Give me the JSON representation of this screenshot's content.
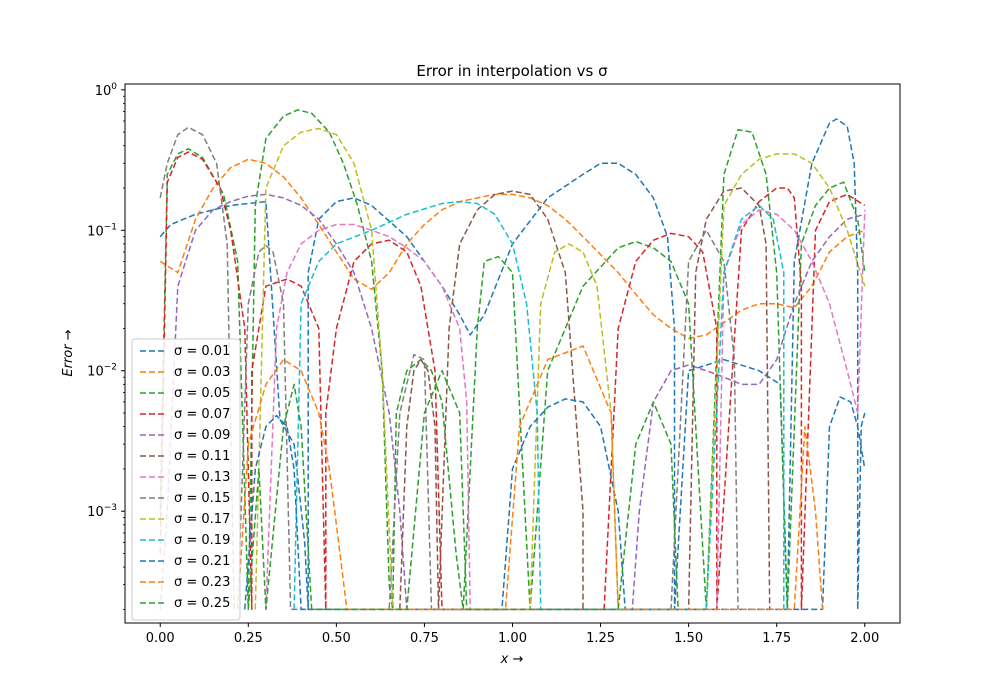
{
  "chart_data": {
    "type": "line",
    "title": "Error in interpolation vs σ",
    "xlabel": "x →",
    "ylabel": "Error →",
    "xlim": [
      -0.1,
      2.1
    ],
    "ylim": [
      0.00016,
      1.1
    ],
    "yscale": "log",
    "line_style": "dashed",
    "grid": false,
    "legend_position": "lower-left",
    "x_ticks": [
      0.0,
      0.25,
      0.5,
      0.75,
      1.0,
      1.25,
      1.5,
      1.75,
      2.0
    ],
    "x_tick_labels": [
      "0.00",
      "0.25",
      "0.50",
      "0.75",
      "1.00",
      "1.25",
      "1.50",
      "1.75",
      "2.00"
    ],
    "y_ticks": [
      0.001,
      0.01,
      0.1,
      1
    ],
    "y_tick_base": "10",
    "y_tick_exponents": [
      "−3",
      "−2",
      "−1",
      "0"
    ],
    "series": [
      {
        "name": "σ = 0.01",
        "color": "#1f77b4",
        "x": [
          0.0,
          0.03,
          0.1,
          0.2,
          0.3,
          0.34,
          0.38,
          0.41,
          0.42,
          0.42,
          0.45,
          0.5,
          0.55,
          0.6,
          0.7,
          0.75,
          0.8,
          0.85,
          0.88,
          0.92,
          1.0,
          1.1,
          1.2,
          1.25,
          1.3,
          1.35,
          1.4,
          1.44,
          1.46,
          1.46,
          1.5,
          1.6,
          1.7,
          1.76,
          1.78,
          1.8,
          1.85,
          1.9,
          1.92,
          1.95,
          1.97,
          1.98,
          1.98,
          1.99,
          2.0
        ],
        "y": [
          0.09,
          0.11,
          0.13,
          0.15,
          0.16,
          0.0045,
          0.003,
          0.0006,
          0.0002,
          0.05,
          0.12,
          0.16,
          0.17,
          0.15,
          0.09,
          0.06,
          0.04,
          0.025,
          0.018,
          0.025,
          0.08,
          0.17,
          0.25,
          0.3,
          0.3,
          0.25,
          0.17,
          0.09,
          0.02,
          0.0002,
          0.01,
          0.012,
          0.01,
          0.008,
          0.0002,
          0.06,
          0.3,
          0.58,
          0.62,
          0.55,
          0.3,
          0.05,
          0.0002,
          0.004,
          0.005
        ]
      },
      {
        "name": "σ = 0.03",
        "color": "#ff7f0e",
        "x": [
          0.0,
          0.05,
          0.1,
          0.15,
          0.2,
          0.25,
          0.3,
          0.35,
          0.4,
          0.45,
          0.5,
          0.55,
          0.6,
          0.65,
          0.7,
          0.75,
          0.8,
          0.85,
          0.9,
          0.95,
          1.0,
          1.05,
          1.1,
          1.15,
          1.2,
          1.3,
          1.35,
          1.4,
          1.45,
          1.5,
          1.55,
          1.6,
          1.65,
          1.7,
          1.75,
          1.8,
          1.85,
          1.9,
          1.95,
          2.0
        ],
        "y": [
          0.06,
          0.05,
          0.12,
          0.2,
          0.28,
          0.32,
          0.3,
          0.24,
          0.17,
          0.11,
          0.07,
          0.045,
          0.038,
          0.05,
          0.08,
          0.11,
          0.14,
          0.16,
          0.17,
          0.18,
          0.18,
          0.17,
          0.15,
          0.12,
          0.09,
          0.05,
          0.035,
          0.025,
          0.02,
          0.017,
          0.018,
          0.022,
          0.027,
          0.03,
          0.03,
          0.028,
          0.04,
          0.07,
          0.09,
          0.1
        ]
      },
      {
        "name": "σ = 0.05",
        "color": "#2ca02c",
        "x": [
          0.0,
          0.02,
          0.05,
          0.08,
          0.12,
          0.18,
          0.22,
          0.25,
          0.27,
          0.3,
          0.35,
          0.39,
          0.43,
          0.48,
          0.52,
          0.56,
          0.6,
          0.63,
          0.65,
          0.66,
          0.67,
          0.7,
          0.74,
          0.77,
          0.8,
          0.84,
          0.86,
          0.9,
          0.92,
          0.96,
          1.0,
          1.05,
          1.1,
          1.2,
          1.3,
          1.35,
          1.4,
          1.45,
          1.5,
          1.55,
          1.6,
          1.64,
          1.68,
          1.72,
          1.75,
          1.78,
          1.82,
          1.86,
          1.9,
          1.94,
          1.98,
          2.0
        ],
        "y": [
          0.001,
          0.25,
          0.35,
          0.38,
          0.33,
          0.18,
          0.06,
          0.0002,
          0.15,
          0.45,
          0.65,
          0.72,
          0.68,
          0.5,
          0.3,
          0.15,
          0.06,
          0.01,
          0.0003,
          0.0002,
          0.005,
          0.01,
          0.012,
          0.01,
          0.006,
          0.0005,
          0.0002,
          0.02,
          0.06,
          0.065,
          0.05,
          0.0002,
          0.01,
          0.04,
          0.075,
          0.083,
          0.075,
          0.06,
          0.03,
          0.0002,
          0.25,
          0.52,
          0.5,
          0.25,
          0.05,
          0.0002,
          0.08,
          0.15,
          0.2,
          0.22,
          0.12,
          0.05
        ]
      },
      {
        "name": "σ = 0.07",
        "color": "#d62728",
        "x": [
          0.0,
          0.02,
          0.05,
          0.08,
          0.12,
          0.17,
          0.2,
          0.24,
          0.26,
          0.26,
          0.3,
          0.36,
          0.4,
          0.45,
          0.47,
          0.47,
          0.5,
          0.55,
          0.6,
          0.65,
          0.7,
          0.74,
          0.78,
          0.8,
          0.8,
          0.9,
          1.0,
          1.1,
          1.2,
          1.26,
          1.26,
          1.3,
          1.35,
          1.4,
          1.45,
          1.5,
          1.54,
          1.58,
          1.58,
          1.65,
          1.7,
          1.75,
          1.78,
          1.8,
          1.82,
          1.82,
          1.86,
          1.9,
          1.95,
          2.0
        ],
        "y": [
          0.0005,
          0.22,
          0.33,
          0.36,
          0.32,
          0.2,
          0.1,
          0.02,
          0.0002,
          0.01,
          0.04,
          0.045,
          0.04,
          0.02,
          0.0002,
          0.005,
          0.02,
          0.06,
          0.08,
          0.085,
          0.07,
          0.04,
          0.01,
          0.0002,
          0.0002,
          0.0002,
          0.0002,
          0.0002,
          0.0002,
          0.0002,
          0.0002,
          0.02,
          0.06,
          0.085,
          0.095,
          0.09,
          0.07,
          0.02,
          0.0002,
          0.1,
          0.16,
          0.2,
          0.2,
          0.17,
          0.04,
          0.0002,
          0.1,
          0.16,
          0.18,
          0.15
        ]
      },
      {
        "name": "σ = 0.09",
        "color": "#9467bd",
        "x": [
          0.0,
          0.02,
          0.05,
          0.1,
          0.15,
          0.2,
          0.25,
          0.3,
          0.35,
          0.4,
          0.45,
          0.5,
          0.55,
          0.6,
          0.65,
          0.68,
          0.7,
          0.7,
          1.34,
          1.34,
          1.36,
          1.4,
          1.45,
          1.5,
          1.55,
          1.6,
          1.65,
          1.7,
          1.75,
          1.8,
          1.85,
          1.9,
          1.95,
          2.0
        ],
        "y": [
          0.0002,
          0.001,
          0.04,
          0.1,
          0.14,
          0.16,
          0.175,
          0.18,
          0.17,
          0.15,
          0.12,
          0.08,
          0.05,
          0.02,
          0.005,
          0.001,
          0.0002,
          0.0002,
          0.0002,
          0.0002,
          0.001,
          0.006,
          0.01,
          0.011,
          0.01,
          0.009,
          0.008,
          0.008,
          0.012,
          0.03,
          0.06,
          0.09,
          0.12,
          0.13
        ]
      },
      {
        "name": "σ = 0.11",
        "color": "#8c564b",
        "x": [
          0.68,
          0.68,
          0.7,
          0.72,
          0.74,
          0.76,
          0.78,
          0.79,
          0.79,
          0.82,
          0.85,
          0.9,
          0.95,
          1.0,
          1.05,
          1.1,
          1.15,
          1.2,
          1.2,
          1.5,
          1.5,
          1.52,
          1.55,
          1.6,
          1.65,
          1.7,
          1.72,
          1.73,
          1.73
        ],
        "y": [
          0.0002,
          0.0002,
          0.004,
          0.01,
          0.012,
          0.01,
          0.004,
          0.0002,
          0.0002,
          0.02,
          0.08,
          0.14,
          0.18,
          0.19,
          0.18,
          0.12,
          0.05,
          0.001,
          0.0002,
          0.0002,
          0.0002,
          0.05,
          0.12,
          0.19,
          0.2,
          0.15,
          0.08,
          0.0002,
          0.0002
        ]
      },
      {
        "name": "σ = 0.13",
        "color": "#e377c2",
        "x": [
          0.3,
          0.3,
          0.33,
          0.36,
          0.4,
          0.45,
          0.5,
          0.55,
          0.6,
          0.65,
          0.7,
          0.75,
          0.8,
          0.85,
          0.87,
          0.88,
          0.88,
          1.58,
          1.58,
          1.6,
          1.65,
          1.7,
          1.75,
          1.8,
          1.85,
          1.9,
          1.95,
          1.98,
          2.0
        ],
        "y": [
          0.0002,
          0.0002,
          0.02,
          0.05,
          0.08,
          0.1,
          0.11,
          0.11,
          0.1,
          0.09,
          0.075,
          0.06,
          0.04,
          0.02,
          0.006,
          0.0002,
          0.0002,
          0.0002,
          0.0002,
          0.05,
          0.11,
          0.14,
          0.13,
          0.1,
          0.06,
          0.03,
          0.01,
          0.005,
          0.14
        ]
      },
      {
        "name": "σ = 0.15",
        "color": "#7f7f7f",
        "x": [
          0.0,
          0.02,
          0.05,
          0.08,
          0.12,
          0.16,
          0.19,
          0.21,
          0.21,
          0.22,
          0.25,
          0.28,
          0.3,
          0.32,
          0.35,
          0.37,
          0.37,
          0.65,
          0.65,
          0.68,
          0.72,
          0.75,
          0.77,
          0.77,
          1.45,
          1.45,
          1.5,
          1.55,
          1.6,
          1.63,
          1.64,
          1.64
        ],
        "y": [
          0.17,
          0.3,
          0.48,
          0.54,
          0.48,
          0.3,
          0.08,
          0.0002,
          0.0002,
          0.0002,
          0.03,
          0.07,
          0.078,
          0.07,
          0.03,
          0.0002,
          0.0002,
          0.0002,
          0.0002,
          0.005,
          0.013,
          0.012,
          0.0002,
          0.0002,
          0.0002,
          0.0002,
          0.06,
          0.1,
          0.06,
          0.012,
          0.0002,
          0.0002
        ]
      },
      {
        "name": "σ = 0.17",
        "color": "#bcbd22",
        "x": [
          0.27,
          0.27,
          0.3,
          0.35,
          0.4,
          0.45,
          0.5,
          0.55,
          0.6,
          0.63,
          0.66,
          0.66,
          1.05,
          1.05,
          1.08,
          1.12,
          1.16,
          1.2,
          1.24,
          1.28,
          1.3,
          1.3,
          1.55,
          1.55,
          1.6,
          1.65,
          1.7,
          1.75,
          1.8,
          1.85,
          1.9,
          1.95,
          2.0
        ],
        "y": [
          0.0002,
          0.0002,
          0.2,
          0.4,
          0.5,
          0.53,
          0.48,
          0.3,
          0.1,
          0.01,
          0.0002,
          0.0002,
          0.0002,
          0.0002,
          0.03,
          0.07,
          0.08,
          0.07,
          0.04,
          0.005,
          0.0002,
          0.0002,
          0.0002,
          0.0002,
          0.15,
          0.25,
          0.32,
          0.35,
          0.35,
          0.3,
          0.2,
          0.1,
          0.04
        ]
      },
      {
        "name": "σ = 0.19",
        "color": "#17becf",
        "x": [
          0.38,
          0.38,
          0.4,
          0.45,
          0.5,
          0.6,
          0.7,
          0.8,
          0.85,
          0.9,
          0.95,
          1.0,
          1.04,
          1.07,
          1.08,
          1.08,
          1.55,
          1.55,
          1.6,
          1.65,
          1.7,
          1.74,
          1.77,
          1.77
        ],
        "y": [
          0.0002,
          0.0002,
          0.03,
          0.06,
          0.08,
          0.1,
          0.13,
          0.155,
          0.16,
          0.155,
          0.13,
          0.08,
          0.03,
          0.005,
          0.0002,
          0.0002,
          0.0002,
          0.0002,
          0.05,
          0.12,
          0.15,
          0.12,
          0.05,
          0.0002
        ]
      },
      {
        "name": "σ = 0.21",
        "color": "#1f77b4",
        "x": [
          0.24,
          0.24,
          0.27,
          0.3,
          0.33,
          0.36,
          0.38,
          0.4,
          0.4,
          0.97,
          0.97,
          1.0,
          1.05,
          1.1,
          1.15,
          1.2,
          1.25,
          1.3,
          1.32,
          1.32,
          1.88,
          1.88,
          1.9,
          1.93,
          1.96,
          1.98,
          2.0
        ],
        "y": [
          0.0002,
          0.0002,
          0.002,
          0.004,
          0.0048,
          0.004,
          0.002,
          0.0002,
          0.0002,
          0.0002,
          0.0002,
          0.002,
          0.004,
          0.0055,
          0.0063,
          0.006,
          0.004,
          0.001,
          0.0002,
          0.0002,
          0.0002,
          0.0002,
          0.004,
          0.0065,
          0.006,
          0.004,
          0.002
        ]
      },
      {
        "name": "σ = 0.23",
        "color": "#ff7f0e",
        "x": [
          0.22,
          0.22,
          0.25,
          0.3,
          0.35,
          0.4,
          0.45,
          0.48,
          0.5,
          0.53,
          0.53,
          0.98,
          0.98,
          1.02,
          1.1,
          1.2,
          1.28,
          1.3,
          1.3,
          1.8,
          1.8,
          1.83,
          1.86,
          1.88,
          1.88
        ],
        "y": [
          0.0002,
          0.0002,
          0.003,
          0.008,
          0.012,
          0.01,
          0.005,
          0.002,
          0.0008,
          0.0002,
          0.0002,
          0.0002,
          0.0002,
          0.004,
          0.012,
          0.015,
          0.005,
          0.0002,
          0.0002,
          0.0002,
          0.0002,
          0.004,
          0.001,
          0.0002,
          0.0002
        ]
      },
      {
        "name": "σ = 0.25",
        "color": "#2ca02c",
        "x": [
          0.25,
          0.25,
          0.28,
          0.3,
          0.3,
          0.35,
          0.38,
          0.4,
          0.43,
          0.43,
          0.7,
          0.7,
          0.75,
          0.8,
          0.85,
          0.87,
          0.87,
          1.3,
          1.3,
          1.35,
          1.4,
          1.45,
          1.47,
          1.47
        ],
        "y": [
          0.0002,
          0.0002,
          0.002,
          0.0002,
          0.0002,
          0.004,
          0.008,
          0.004,
          0.0002,
          0.0002,
          0.0002,
          0.0002,
          0.005,
          0.01,
          0.005,
          0.0002,
          0.0002,
          0.0002,
          0.0002,
          0.003,
          0.006,
          0.003,
          0.0002,
          0.0002
        ]
      }
    ]
  }
}
